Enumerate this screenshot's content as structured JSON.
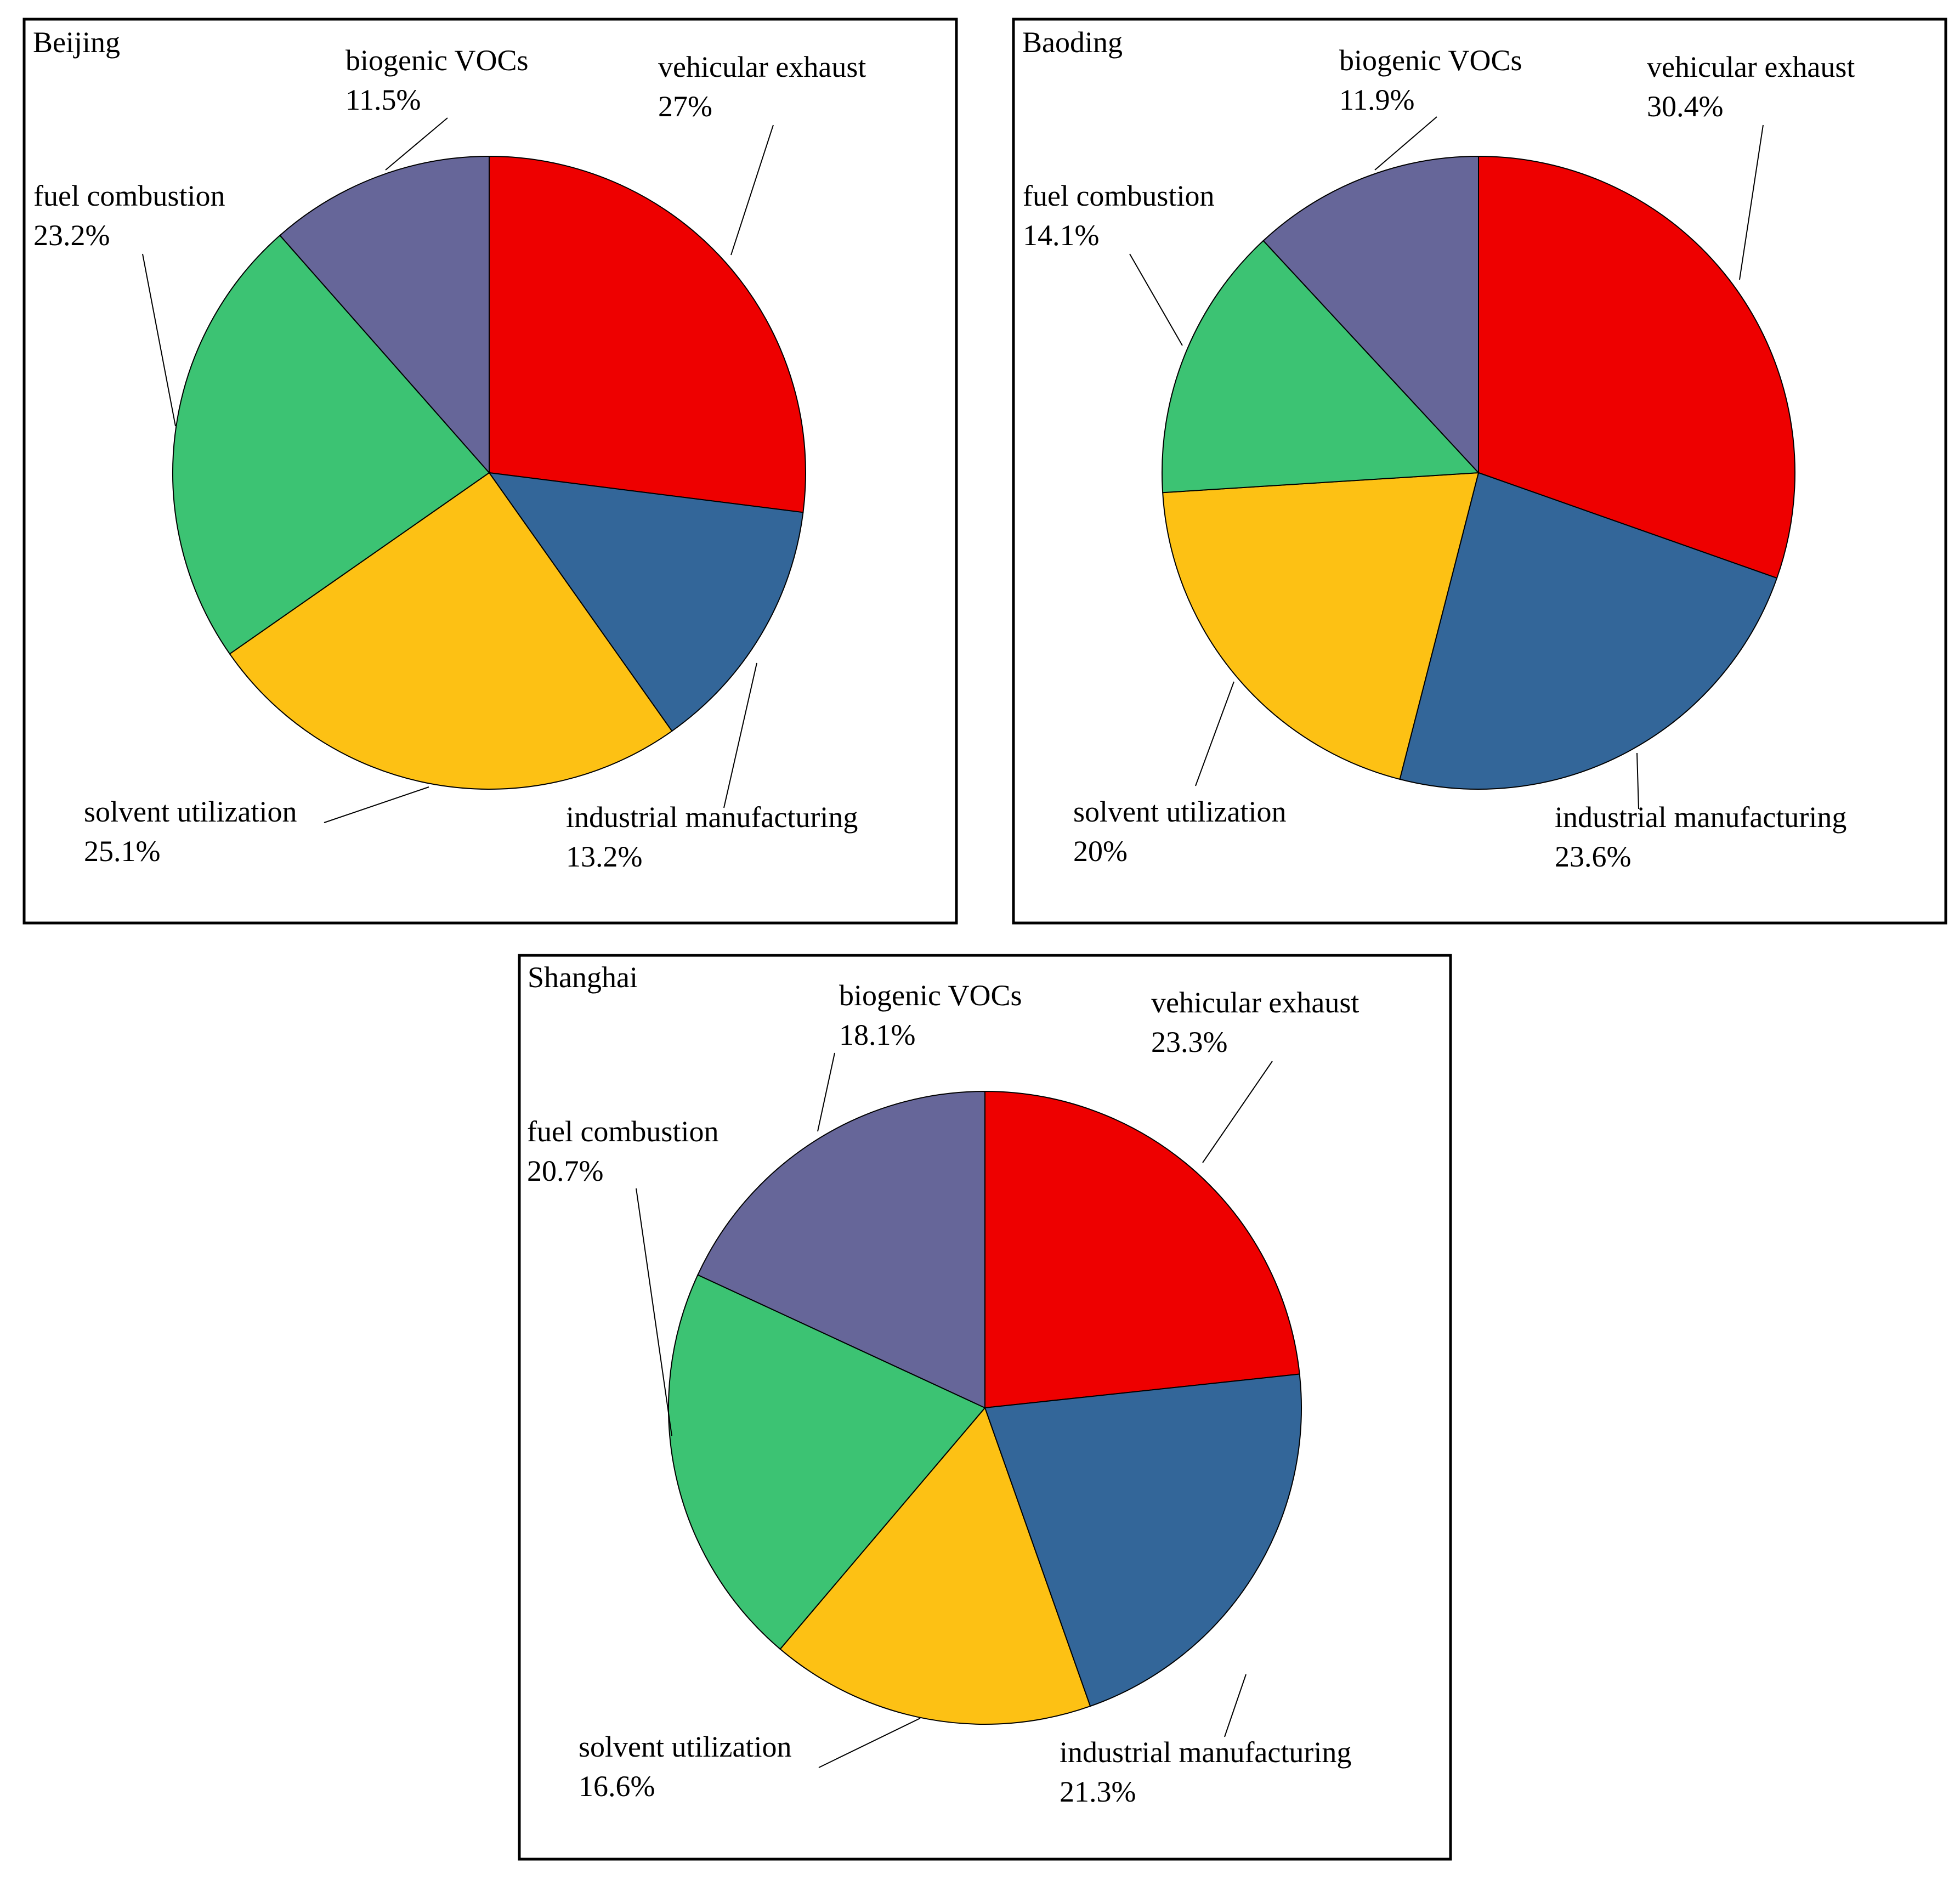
{
  "chart_data": [
    {
      "type": "pie",
      "title": "Beijing",
      "slices": [
        {
          "label": "vehicular exhaust",
          "value": 27,
          "value_text": "27%",
          "color": "#EE0000"
        },
        {
          "label": "industrial manufacturing",
          "value": 13.2,
          "value_text": "13.2%",
          "color": "#336699"
        },
        {
          "label": "solvent utilization",
          "value": 25.1,
          "value_text": "25.1%",
          "color": "#FDC114"
        },
        {
          "label": "fuel combustion",
          "value": 23.2,
          "value_text": "23.2%",
          "color": "#3CC373"
        },
        {
          "label": "biogenic VOCs",
          "value": 11.5,
          "value_text": "11.5%",
          "color": "#666699"
        }
      ]
    },
    {
      "type": "pie",
      "title": "Baoding",
      "slices": [
        {
          "label": "vehicular exhaust",
          "value": 30.4,
          "value_text": "30.4%",
          "color": "#EE0000"
        },
        {
          "label": "industrial manufacturing",
          "value": 23.6,
          "value_text": "23.6%",
          "color": "#336699"
        },
        {
          "label": "solvent utilization",
          "value": 20,
          "value_text": "20%",
          "color": "#FDC114"
        },
        {
          "label": "fuel combustion",
          "value": 14.1,
          "value_text": "14.1%",
          "color": "#3CC373"
        },
        {
          "label": "biogenic VOCs",
          "value": 11.9,
          "value_text": "11.9%",
          "color": "#666699"
        }
      ]
    },
    {
      "type": "pie",
      "title": "Shanghai",
      "slices": [
        {
          "label": "vehicular exhaust",
          "value": 23.3,
          "value_text": "23.3%",
          "color": "#EE0000"
        },
        {
          "label": "industrial manufacturing",
          "value": 21.3,
          "value_text": "21.3%",
          "color": "#336699"
        },
        {
          "label": "solvent utilization",
          "value": 16.6,
          "value_text": "16.6%",
          "color": "#FDC114"
        },
        {
          "label": "fuel combustion",
          "value": 20.7,
          "value_text": "20.7%",
          "color": "#3CC373"
        },
        {
          "label": "biogenic VOCs",
          "value": 18.1,
          "value_text": "18.1%",
          "color": "#666699"
        }
      ]
    }
  ]
}
